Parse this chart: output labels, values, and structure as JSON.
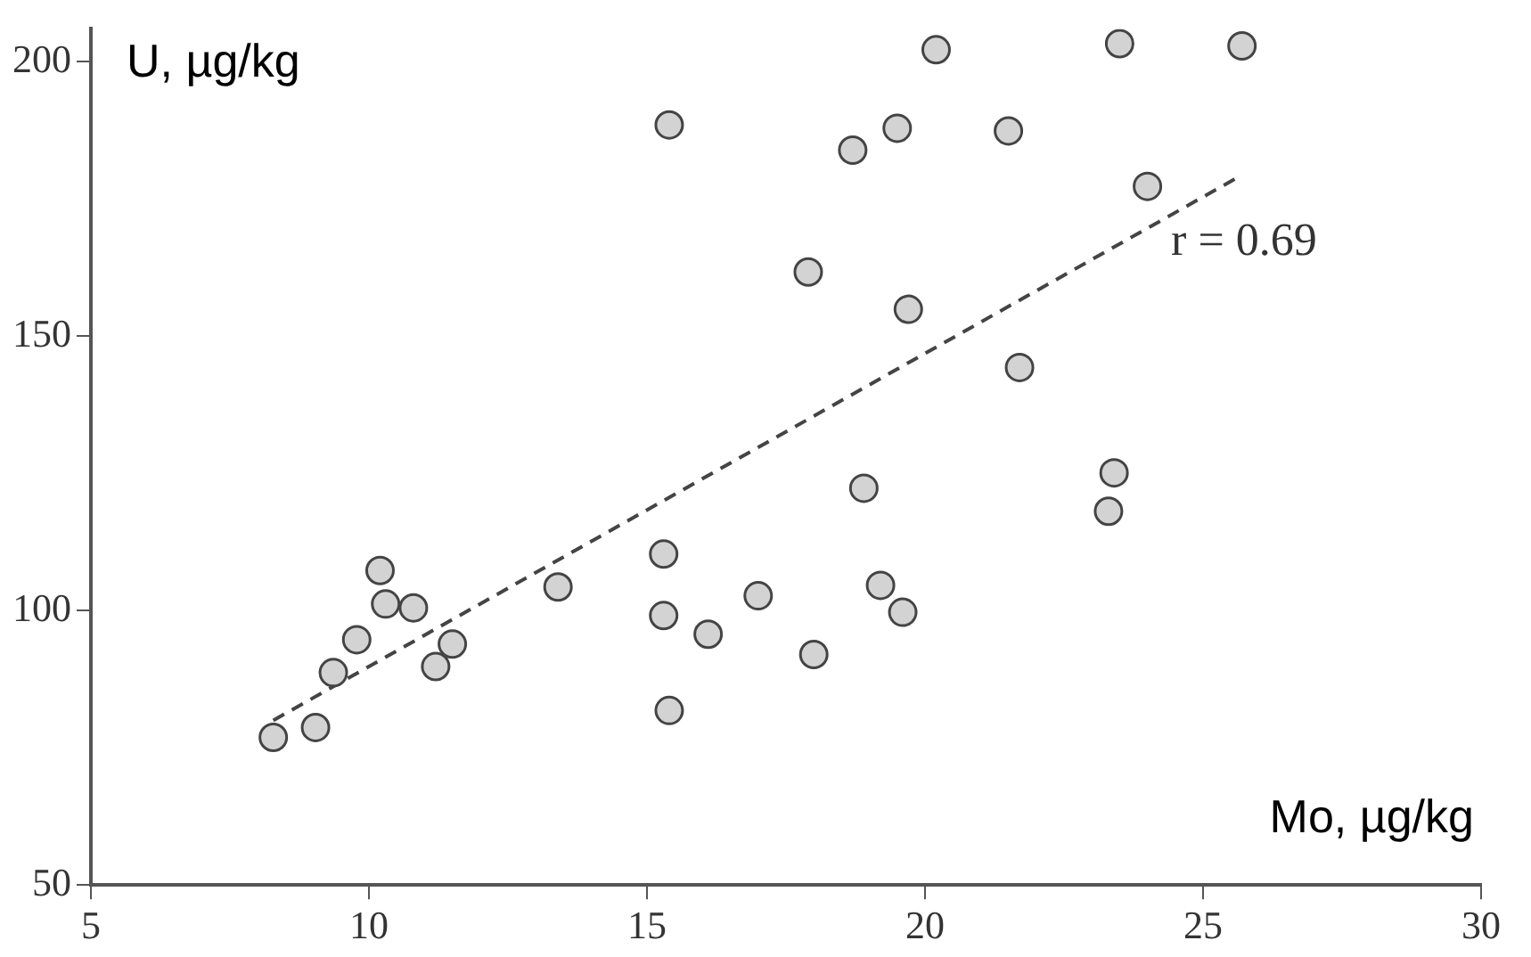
{
  "chart_data": {
    "type": "scatter",
    "xlabel": "Mo, µg/kg",
    "ylabel": "U, µg/kg",
    "xlim": [
      5,
      30
    ],
    "xticks": [
      5,
      10,
      15,
      20,
      25,
      30
    ],
    "ylim": [
      50,
      206
    ],
    "yticks": [
      50,
      100,
      150,
      200
    ],
    "grid": false,
    "legend": false,
    "marker": "circle",
    "series": [
      {
        "color": "#d3d3d3",
        "x": [
          8.28,
          9.04,
          9.36,
          9.78,
          10.2,
          10.3,
          10.8,
          11.2,
          11.5,
          13.4,
          15.4,
          15.3,
          15.3,
          15.4,
          16.1,
          17.0,
          17.9,
          18.0,
          18.7,
          18.9,
          19.2,
          19.5,
          19.6,
          19.7,
          20.2,
          21.5,
          21.7,
          23.3,
          23.4,
          23.5,
          24.0,
          25.7
        ],
        "values": [
          76.9,
          78.7,
          88.7,
          94.7,
          107.3,
          101.2,
          100.5,
          89.8,
          93.9,
          104.3,
          188.5,
          110.3,
          99.1,
          81.8,
          95.7,
          102.7,
          161.7,
          92.0,
          183.9,
          122.3,
          104.6,
          187.9,
          99.7,
          154.9,
          202.2,
          187.4,
          144.3,
          118.1,
          125.1,
          203.3,
          177.3,
          202.9
        ]
      },
      {
        "type": "line",
        "color": "#444444",
        "line_style": "dashed",
        "marker": "none",
        "x": [
          8.28,
          25.6
        ],
        "values": [
          80,
          178.8
        ]
      }
    ],
    "annotations": [
      "r = 0.69"
    ]
  }
}
